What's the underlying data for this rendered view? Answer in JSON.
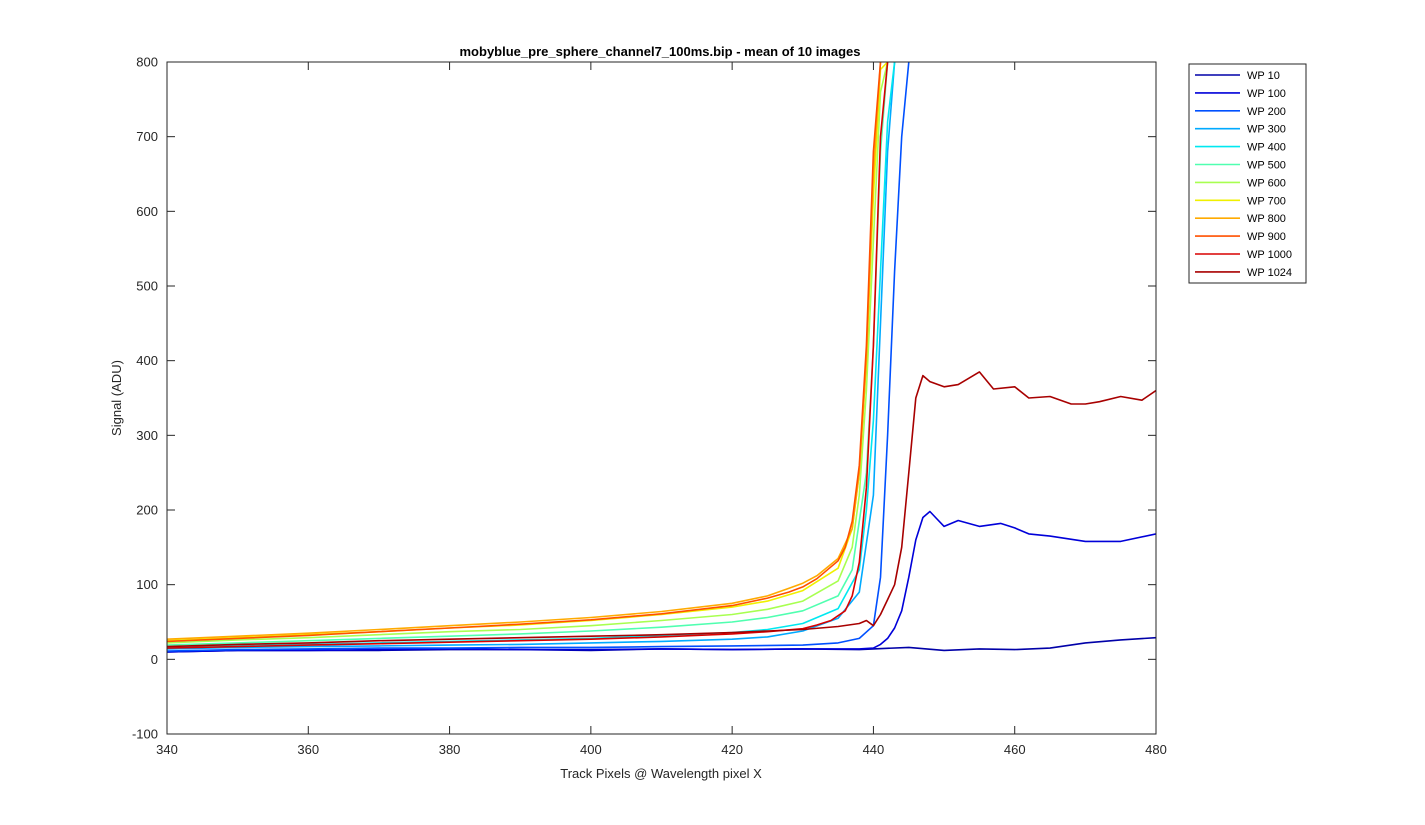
{
  "chart_data": {
    "type": "line",
    "title": "mobyblue_pre_sphere_channel7_100ms.bip - mean of 10 images",
    "xlabel": "Track Pixels @ Wavelength pixel X",
    "ylabel": "Signal (ADU)",
    "xlim": [
      340,
      480
    ],
    "ylim": [
      -100,
      800
    ],
    "xticks": [
      340,
      360,
      380,
      400,
      420,
      440,
      460,
      480
    ],
    "yticks": [
      -100,
      0,
      100,
      200,
      300,
      400,
      500,
      600,
      700,
      800
    ],
    "grid": false,
    "legend_position": "outside-top-right",
    "series": [
      {
        "name": "WP 10",
        "color": "#0000a8",
        "x": [
          340,
          350,
          360,
          370,
          380,
          390,
          400,
          410,
          420,
          430,
          438,
          440,
          445,
          450,
          455,
          460,
          465,
          470,
          475,
          480
        ],
        "y": [
          10,
          12,
          12,
          12,
          13,
          13,
          12,
          14,
          13,
          14,
          13,
          14,
          16,
          12,
          14,
          13,
          15,
          22,
          26,
          29
        ]
      },
      {
        "name": "WP 100",
        "color": "#0000d9",
        "x": [
          340,
          350,
          360,
          370,
          380,
          390,
          400,
          410,
          420,
          430,
          438,
          440,
          441,
          442,
          443,
          444,
          445,
          446,
          447,
          448,
          449,
          450,
          452,
          455,
          458,
          460,
          462,
          465,
          470,
          475,
          480
        ],
        "y": [
          10,
          12,
          12,
          13,
          14,
          13,
          13,
          14,
          13,
          14,
          14,
          15,
          20,
          28,
          42,
          65,
          110,
          160,
          190,
          198,
          188,
          178,
          186,
          178,
          182,
          176,
          168,
          165,
          158,
          158,
          168
        ]
      },
      {
        "name": "WP 200",
        "color": "#0050ff",
        "x": [
          340,
          350,
          360,
          370,
          380,
          390,
          400,
          410,
          420,
          430,
          435,
          438,
          440,
          441,
          442,
          443,
          444,
          445
        ],
        "y": [
          11,
          13,
          14,
          15,
          15,
          16,
          16,
          17,
          18,
          19,
          22,
          28,
          45,
          110,
          300,
          520,
          700,
          800
        ]
      },
      {
        "name": "WP 300",
        "color": "#00aaff",
        "x": [
          340,
          350,
          360,
          370,
          380,
          390,
          400,
          410,
          420,
          425,
          430,
          435,
          438,
          440,
          441,
          442,
          443
        ],
        "y": [
          14,
          16,
          17,
          18,
          19,
          20,
          22,
          24,
          27,
          30,
          38,
          55,
          90,
          220,
          450,
          680,
          800
        ]
      },
      {
        "name": "WP 400",
        "color": "#00e8f0",
        "x": [
          340,
          350,
          360,
          370,
          380,
          390,
          400,
          410,
          420,
          425,
          430,
          435,
          438,
          439,
          440,
          441,
          442,
          443
        ],
        "y": [
          16,
          18,
          20,
          22,
          24,
          26,
          28,
          32,
          36,
          40,
          48,
          68,
          120,
          200,
          320,
          520,
          720,
          800
        ]
      },
      {
        "name": "WP 500",
        "color": "#50ffb0",
        "x": [
          340,
          350,
          360,
          370,
          380,
          390,
          400,
          410,
          420,
          425,
          430,
          435,
          437,
          439,
          440,
          441,
          442
        ],
        "y": [
          19,
          22,
          25,
          28,
          31,
          34,
          38,
          43,
          50,
          56,
          65,
          85,
          120,
          250,
          420,
          680,
          800
        ]
      },
      {
        "name": "WP 600",
        "color": "#a8ff50",
        "x": [
          340,
          350,
          360,
          370,
          380,
          390,
          400,
          410,
          420,
          425,
          430,
          435,
          437,
          438,
          439,
          440,
          441,
          442
        ],
        "y": [
          22,
          26,
          29,
          33,
          37,
          40,
          45,
          52,
          60,
          67,
          78,
          105,
          150,
          220,
          360,
          560,
          760,
          800
        ]
      },
      {
        "name": "WP 700",
        "color": "#f0f000",
        "x": [
          340,
          350,
          360,
          370,
          380,
          390,
          400,
          410,
          420,
          425,
          430,
          435,
          437,
          438,
          439,
          440,
          441,
          442
        ],
        "y": [
          25,
          29,
          33,
          37,
          42,
          46,
          52,
          60,
          70,
          78,
          92,
          122,
          175,
          250,
          400,
          620,
          790,
          800
        ]
      },
      {
        "name": "WP 800",
        "color": "#ffaa00",
        "x": [
          340,
          350,
          360,
          370,
          380,
          390,
          400,
          410,
          420,
          425,
          428,
          430,
          432,
          435,
          437,
          438,
          439,
          440,
          441
        ],
        "y": [
          27,
          31,
          35,
          40,
          45,
          50,
          56,
          64,
          75,
          85,
          95,
          102,
          112,
          135,
          175,
          250,
          400,
          650,
          800
        ]
      },
      {
        "name": "WP 900",
        "color": "#ff5000",
        "x": [
          340,
          350,
          360,
          370,
          380,
          390,
          400,
          410,
          420,
          425,
          428,
          430,
          432,
          435,
          436,
          437,
          438,
          439,
          440,
          441
        ],
        "y": [
          24,
          28,
          32,
          37,
          42,
          47,
          53,
          61,
          72,
          82,
          90,
          97,
          108,
          132,
          150,
          185,
          260,
          420,
          680,
          800
        ]
      },
      {
        "name": "WP 1000",
        "color": "#d90000",
        "x": [
          340,
          350,
          360,
          370,
          380,
          390,
          400,
          410,
          420,
          425,
          430,
          432,
          434,
          436,
          437,
          438,
          439,
          440,
          441,
          442
        ],
        "y": [
          15,
          17,
          19,
          21,
          23,
          25,
          27,
          30,
          34,
          37,
          41,
          46,
          52,
          65,
          85,
          130,
          230,
          420,
          700,
          800
        ]
      },
      {
        "name": "WP 1024",
        "color": "#a80000",
        "x": [
          340,
          350,
          360,
          370,
          380,
          390,
          400,
          410,
          420,
          425,
          430,
          435,
          438,
          439,
          440,
          441,
          442,
          443,
          444,
          445,
          446,
          447,
          448,
          450,
          452,
          455,
          457,
          460,
          462,
          465,
          468,
          470,
          472,
          475,
          478,
          480
        ],
        "y": [
          17,
          20,
          22,
          25,
          27,
          29,
          31,
          33,
          36,
          38,
          40,
          44,
          48,
          52,
          45,
          60,
          80,
          100,
          150,
          250,
          350,
          380,
          372,
          365,
          368,
          385,
          362,
          365,
          350,
          352,
          342,
          342,
          345,
          352,
          347,
          360
        ]
      }
    ]
  }
}
